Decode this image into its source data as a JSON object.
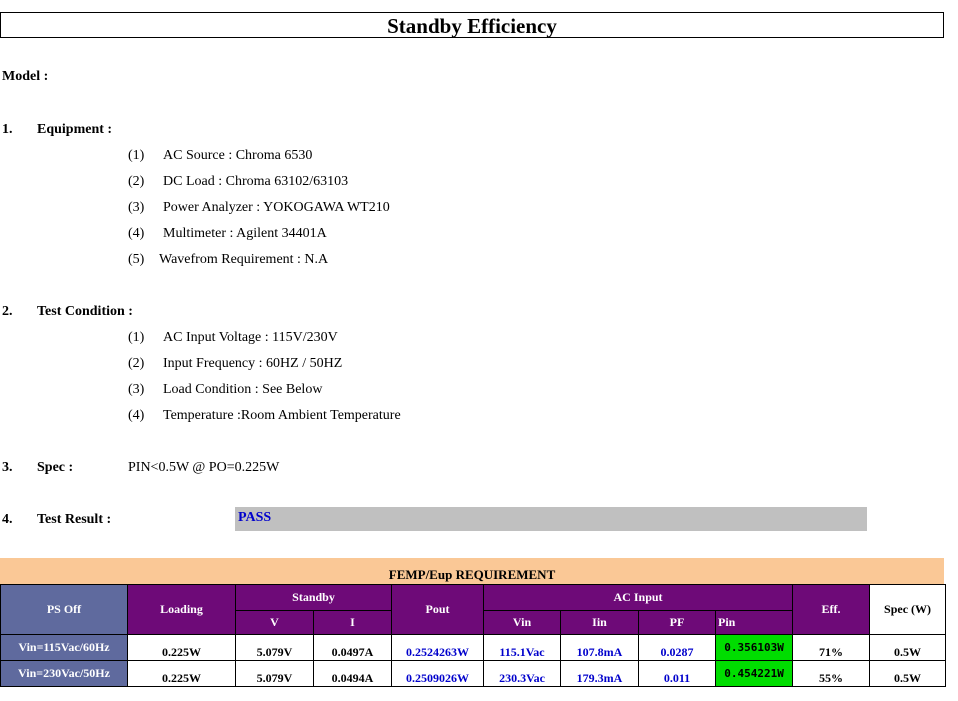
{
  "title": "Standby Efficiency",
  "model_label": "Model :",
  "sections": {
    "equipment": {
      "number": "1.",
      "heading": "Equipment :",
      "items": [
        {
          "n": "(1)",
          "text": "AC Source : Chroma 6530"
        },
        {
          "n": "(2)",
          "text": "DC Load : Chroma 63102/63103"
        },
        {
          "n": "(3)",
          "text": "Power Analyzer : YOKOGAWA WT210"
        },
        {
          "n": "(4)",
          "text": "Multimeter : Agilent 34401A"
        },
        {
          "n": "(5)",
          "text": "Wavefrom Requirement  :  N.A"
        }
      ]
    },
    "test_condition": {
      "number": "2.",
      "heading": "Test Condition :",
      "items": [
        {
          "n": "(1)",
          "text": "AC Input Voltage : 115V/230V"
        },
        {
          "n": "(2)",
          "text": "Input Frequency : 60HZ / 50HZ"
        },
        {
          "n": "(3)",
          "text": "Load Condition :  See Below"
        },
        {
          "n": "(4)",
          "text": "Temperature :Room Ambient Temperature"
        }
      ]
    },
    "spec": {
      "number": "3.",
      "heading": "Spec :",
      "value": "PIN<0.5W @ PO=0.225W"
    },
    "result": {
      "number": "4.",
      "heading": "Test Result :",
      "value": "PASS"
    }
  },
  "femp": {
    "title": "FEMP/Eup REQUIREMENT",
    "headers": {
      "ps_off": "PS Off",
      "loading": "Loading",
      "standby": "Standby",
      "v": "V",
      "i": "I",
      "pout": "Pout",
      "ac_input": "AC Input",
      "vin": "Vin",
      "iin": "Iin",
      "pf": "PF",
      "pin": "Pin",
      "eff": "Eff.",
      "spec": "Spec (W)"
    },
    "rows": [
      {
        "label": "Vin=115Vac/60Hz",
        "loading": "0.225W",
        "v": "5.079V",
        "i": "0.0497A",
        "pout": "0.2524263W",
        "vin": "115.1Vac",
        "iin": "107.8mA",
        "pf": "0.0287",
        "pin": "0.356103W",
        "eff": "71%",
        "spec": "0.5W"
      },
      {
        "label": "Vin=230Vac/50Hz",
        "loading": "0.225W",
        "v": "5.079V",
        "i": "0.0494A",
        "pout": "0.2509026W",
        "vin": "230.3Vac",
        "iin": "179.3mA",
        "pf": "0.011",
        "pin": "0.454221W",
        "eff": "55%",
        "spec": "0.5W"
      }
    ]
  },
  "colors": {
    "result_bar": "#c0c0c0",
    "result_text": "#0000cc",
    "femp_bar": "#fac896",
    "header_blue": "#5f6a9e",
    "header_purple": "#6e0a78",
    "pin_highlight": "#00dd00"
  }
}
